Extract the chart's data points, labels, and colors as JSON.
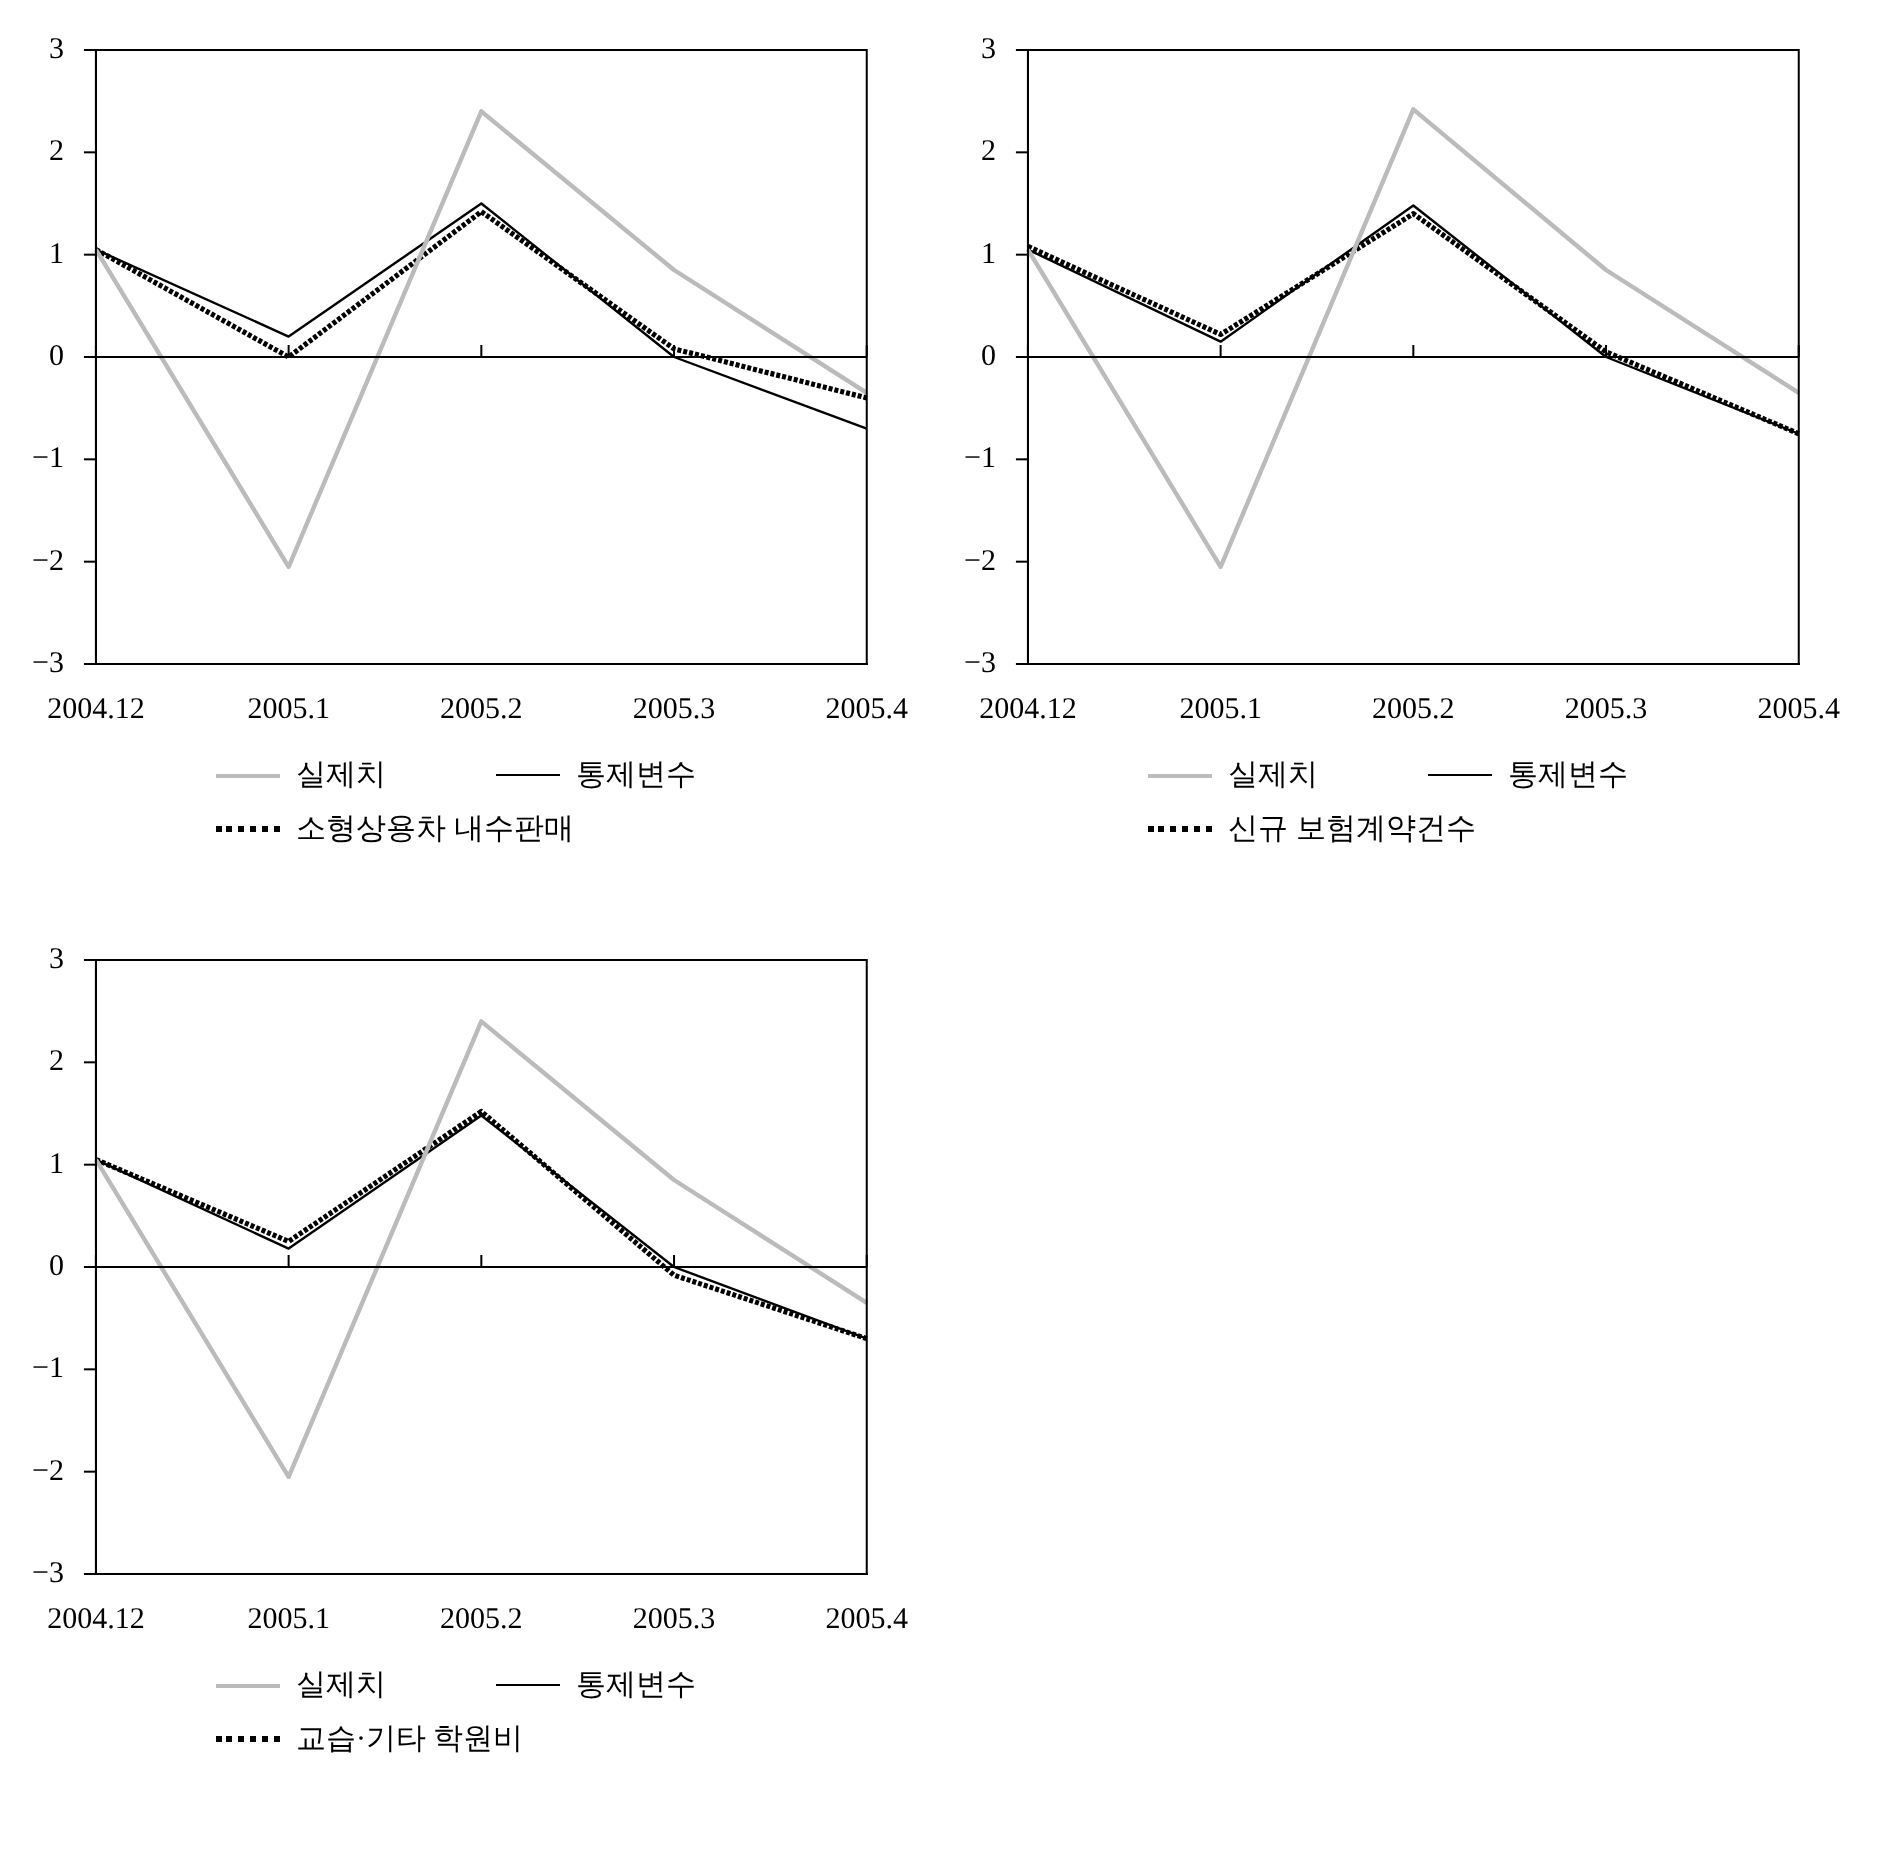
{
  "chart_data": [
    {
      "type": "line",
      "categories": [
        "2004.12",
        "2005.1",
        "2005.2",
        "2005.3",
        "2005.4"
      ],
      "ylim": [
        -3,
        3
      ],
      "yticks": [
        -3,
        -2,
        -1,
        0,
        1,
        2,
        3
      ],
      "grid": false,
      "legend": "bottom",
      "marker": "none",
      "ref_lines": [
        {
          "axis": "y",
          "value": 0,
          "color": "#000000"
        }
      ],
      "series": [
        {
          "name": "실제치",
          "color": "#bbbbbb",
          "line_style": "solid",
          "values": [
            1.05,
            -2.05,
            2.4,
            0.85,
            -0.35
          ]
        },
        {
          "name": "통제변수",
          "color": "#000000",
          "line_style": "solid",
          "values": [
            1.05,
            0.2,
            1.5,
            0.0,
            -0.7
          ]
        },
        {
          "name": "소형상용차 내수판매",
          "color": "#000000",
          "line_style": "dotted",
          "values": [
            1.05,
            0.0,
            1.42,
            0.08,
            -0.4
          ]
        }
      ]
    },
    {
      "type": "line",
      "categories": [
        "2004.12",
        "2005.1",
        "2005.2",
        "2005.3",
        "2005.4"
      ],
      "ylim": [
        -3,
        3
      ],
      "yticks": [
        -3,
        -2,
        -1,
        0,
        1,
        2,
        3
      ],
      "grid": false,
      "legend": "bottom",
      "marker": "none",
      "ref_lines": [
        {
          "axis": "y",
          "value": 0,
          "color": "#000000"
        }
      ],
      "series": [
        {
          "name": "실제치",
          "color": "#bbbbbb",
          "line_style": "solid",
          "values": [
            1.05,
            -2.05,
            2.42,
            0.85,
            -0.35
          ]
        },
        {
          "name": "통제변수",
          "color": "#000000",
          "line_style": "solid",
          "values": [
            1.05,
            0.15,
            1.48,
            0.0,
            -0.75
          ]
        },
        {
          "name": "신규 보험계약건수",
          "color": "#000000",
          "line_style": "dotted",
          "values": [
            1.08,
            0.22,
            1.4,
            0.05,
            -0.75
          ]
        }
      ]
    },
    {
      "type": "line",
      "categories": [
        "2004.12",
        "2005.1",
        "2005.2",
        "2005.3",
        "2005.4"
      ],
      "ylim": [
        -3,
        3
      ],
      "yticks": [
        -3,
        -2,
        -1,
        0,
        1,
        2,
        3
      ],
      "grid": false,
      "legend": "bottom",
      "marker": "none",
      "ref_lines": [
        {
          "axis": "y",
          "value": 0,
          "color": "#000000"
        }
      ],
      "series": [
        {
          "name": "실제치",
          "color": "#bbbbbb",
          "line_style": "solid",
          "values": [
            1.05,
            -2.05,
            2.4,
            0.85,
            -0.35
          ]
        },
        {
          "name": "통제변수",
          "color": "#000000",
          "line_style": "solid",
          "values": [
            1.05,
            0.18,
            1.48,
            0.0,
            -0.7
          ]
        },
        {
          "name": "교습·기타 학원비",
          "color": "#000000",
          "line_style": "dotted",
          "values": [
            1.05,
            0.25,
            1.52,
            -0.08,
            -0.7
          ]
        }
      ]
    }
  ]
}
